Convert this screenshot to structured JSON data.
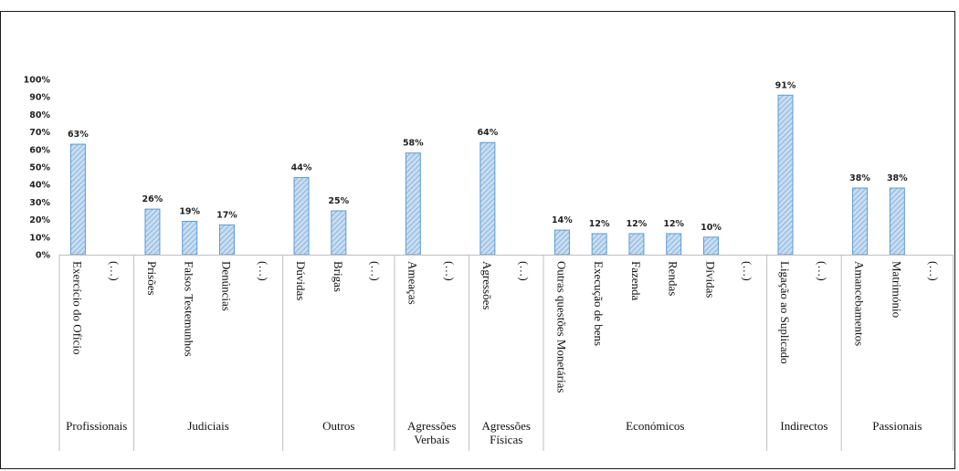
{
  "chart_data": {
    "type": "bar",
    "ylim": [
      0,
      100
    ],
    "yticks": [
      "0%",
      "10%",
      "20%",
      "30%",
      "40%",
      "50%",
      "60%",
      "70%",
      "80%",
      "90%",
      "100%"
    ],
    "grid": false,
    "bar_color": "#9dc3e6",
    "bar_edge_color": "#5b9bd5",
    "groups": [
      {
        "label": "Profissionais",
        "categories": [
          {
            "label": "Exercício do Ofício",
            "value": 63,
            "value_label": "63%"
          },
          {
            "label": "(…)",
            "value": null,
            "value_label": ""
          }
        ]
      },
      {
        "label": "Judiciais",
        "categories": [
          {
            "label": "Prisões",
            "value": 26,
            "value_label": "26%"
          },
          {
            "label": "Falsos Testemunhos",
            "value": 19,
            "value_label": "19%"
          },
          {
            "label": "Denúncias",
            "value": 17,
            "value_label": "17%"
          },
          {
            "label": "(…)",
            "value": null,
            "value_label": ""
          }
        ]
      },
      {
        "label": "Outros",
        "categories": [
          {
            "label": "Dúvidas",
            "value": 44,
            "value_label": "44%"
          },
          {
            "label": "Brigas",
            "value": 25,
            "value_label": "25%"
          },
          {
            "label": "(…)",
            "value": null,
            "value_label": ""
          }
        ]
      },
      {
        "label": "Agressões Verbais",
        "label_lines": [
          "Agressões",
          "Verbais"
        ],
        "categories": [
          {
            "label": "Ameaças",
            "value": 58,
            "value_label": "58%"
          },
          {
            "label": "(…)",
            "value": null,
            "value_label": ""
          }
        ]
      },
      {
        "label": "Agressões Físicas",
        "label_lines": [
          "Agressões",
          "Físicas"
        ],
        "categories": [
          {
            "label": "Agressões",
            "value": 64,
            "value_label": "64%"
          },
          {
            "label": "(…)",
            "value": null,
            "value_label": ""
          }
        ]
      },
      {
        "label": "Económicos",
        "categories": [
          {
            "label": "Outras questões Monetárias",
            "value": 14,
            "value_label": "14%"
          },
          {
            "label": "Execução de bens",
            "value": 12,
            "value_label": "12%"
          },
          {
            "label": "Fazenda",
            "value": 12,
            "value_label": "12%"
          },
          {
            "label": "Rendas",
            "value": 12,
            "value_label": "12%"
          },
          {
            "label": "Dívidas",
            "value": 10,
            "value_label": "10%"
          },
          {
            "label": "(…)",
            "value": null,
            "value_label": ""
          }
        ]
      },
      {
        "label": "Indirectos",
        "categories": [
          {
            "label": "Ligação ao Suplicado",
            "value": 91,
            "value_label": "91%"
          },
          {
            "label": "(…)",
            "value": null,
            "value_label": ""
          }
        ]
      },
      {
        "label": "Passionais",
        "categories": [
          {
            "label": "Amancebamentos",
            "value": 38,
            "value_label": "38%"
          },
          {
            "label": "Matrimónio",
            "value": 38,
            "value_label": "38%"
          },
          {
            "label": "(…)",
            "value": null,
            "value_label": ""
          }
        ]
      }
    ]
  }
}
